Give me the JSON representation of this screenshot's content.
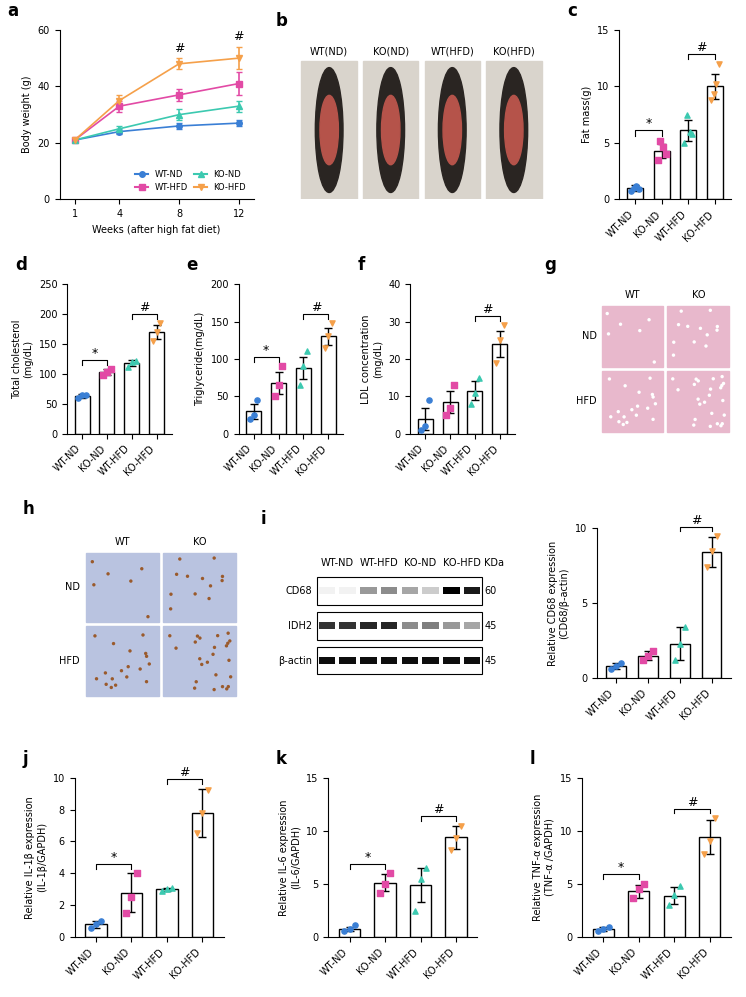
{
  "chart_data": [
    {
      "panel": "a",
      "type": "line",
      "xlabel": "Weeks (after high fat diet)",
      "ylabel": "Body weight (g)",
      "x": [
        1,
        4,
        8,
        12
      ],
      "xlim": [
        0,
        13
      ],
      "xticks": [
        1,
        4,
        8,
        12
      ],
      "ylim": [
        0,
        60
      ],
      "yticks": [
        0,
        20,
        40,
        60
      ],
      "legend": "lower right",
      "series": [
        {
          "name": "WT-ND",
          "color": "#3a7fd5",
          "marker": "circle",
          "values": [
            21,
            24,
            26,
            27
          ],
          "errors": [
            0.5,
            1,
            1,
            1
          ]
        },
        {
          "name": "WT-HFD",
          "color": "#e24aa5",
          "marker": "square",
          "values": [
            21,
            33,
            37,
            41
          ],
          "errors": [
            0.5,
            2,
            2,
            4
          ]
        },
        {
          "name": "KO-ND",
          "color": "#3cc9b0",
          "marker": "triangle_up",
          "values": [
            21,
            25,
            30,
            33
          ],
          "errors": [
            0.5,
            1,
            2,
            2
          ]
        },
        {
          "name": "KO-HFD",
          "color": "#f5a04a",
          "marker": "triangle_down",
          "values": [
            21,
            35,
            48,
            50
          ],
          "errors": [
            0.5,
            2,
            2,
            4
          ]
        }
      ],
      "annotations": [
        {
          "x": 8,
          "text": "#"
        },
        {
          "x": 12,
          "text": "#"
        }
      ]
    },
    {
      "panel": "c",
      "type": "bar",
      "ylabel": "Fat mass(g)",
      "categories": [
        "WT-ND",
        "KO-ND",
        "WT-HFD",
        "KO-HFD"
      ],
      "colors": [
        "#3a7fd5",
        "#e24aa5",
        "#3cc9b0",
        "#f5a04a"
      ],
      "values": [
        1.0,
        4.3,
        6.1,
        10.0
      ],
      "errors": [
        0.3,
        0.6,
        0.9,
        1.1
      ],
      "points": [
        [
          0.7,
          1.0,
          1.2,
          0.9
        ],
        [
          3.5,
          5.2,
          4.6,
          4.0
        ],
        [
          5.0,
          7.5,
          6.0,
          5.8
        ],
        [
          8.8,
          9.3,
          10.2,
          12.0
        ]
      ],
      "ylim": [
        0,
        15
      ],
      "yticks": [
        0,
        5,
        10,
        15
      ],
      "annotations": [
        {
          "between": [
            "WT-ND",
            "KO-ND"
          ],
          "text": "*"
        },
        {
          "between": [
            "WT-HFD",
            "KO-HFD"
          ],
          "text": "#"
        }
      ]
    },
    {
      "panel": "d",
      "type": "bar",
      "ylabel": "Total cholesterol\n(mg/dL)",
      "categories": [
        "WT-ND",
        "KO-ND",
        "WT-HFD",
        "KO-HFD"
      ],
      "colors": [
        "#3a7fd5",
        "#e24aa5",
        "#3cc9b0",
        "#f5a04a"
      ],
      "values": [
        63,
        103,
        118,
        170
      ],
      "errors": [
        3,
        5,
        5,
        12
      ],
      "points": [
        [
          60,
          65,
          64
        ],
        [
          98,
          103,
          108
        ],
        [
          112,
          120,
          122
        ],
        [
          155,
          170,
          185
        ]
      ],
      "ylim": [
        0,
        250
      ],
      "yticks": [
        0,
        50,
        100,
        150,
        200,
        250
      ],
      "annotations": [
        {
          "between": [
            "WT-ND",
            "KO-ND"
          ],
          "text": "*"
        },
        {
          "between": [
            "WT-HFD",
            "KO-HFD"
          ],
          "text": "#"
        }
      ]
    },
    {
      "panel": "e",
      "type": "bar",
      "ylabel": "Triglyceride(mg/dL)",
      "categories": [
        "WT-ND",
        "KO-ND",
        "WT-HFD",
        "KO-HFD"
      ],
      "colors": [
        "#3a7fd5",
        "#e24aa5",
        "#3cc9b0",
        "#f5a04a"
      ],
      "values": [
        30,
        68,
        88,
        130
      ],
      "errors": [
        10,
        15,
        15,
        12
      ],
      "points": [
        [
          20,
          25,
          45
        ],
        [
          50,
          65,
          90
        ],
        [
          65,
          90,
          110
        ],
        [
          115,
          130,
          148
        ]
      ],
      "ylim": [
        0,
        200
      ],
      "yticks": [
        0,
        50,
        100,
        150,
        200
      ],
      "annotations": [
        {
          "between": [
            "WT-ND",
            "KO-ND"
          ],
          "text": "*"
        },
        {
          "between": [
            "WT-HFD",
            "KO-HFD"
          ],
          "text": "#"
        }
      ]
    },
    {
      "panel": "f",
      "type": "bar",
      "ylabel": "LDL concentration\n(mg/dL)",
      "categories": [
        "WT-ND",
        "KO-ND",
        "WT-HFD",
        "KO-HFD"
      ],
      "colors": [
        "#3a7fd5",
        "#e24aa5",
        "#3cc9b0",
        "#f5a04a"
      ],
      "values": [
        4,
        8.5,
        11.5,
        24
      ],
      "errors": [
        3,
        3,
        2.5,
        3.5
      ],
      "points": [
        [
          1,
          2,
          9
        ],
        [
          5,
          7,
          13
        ],
        [
          8,
          11,
          15
        ],
        [
          19,
          25,
          29
        ]
      ],
      "ylim": [
        0,
        40
      ],
      "yticks": [
        0,
        10,
        20,
        30,
        40
      ],
      "annotations": [
        {
          "between": [
            "WT-HFD",
            "KO-HFD"
          ],
          "text": "#"
        }
      ]
    },
    {
      "type": "bar",
      "ylabel": "Relative CD68 expression\n(CD68/β-actin)",
      "categories": [
        "WT-ND",
        "KO-ND",
        "WT-HFD",
        "KO-HFD"
      ],
      "colors": [
        "#3a7fd5",
        "#e24aa5",
        "#3cc9b0",
        "#f5a04a"
      ],
      "values": [
        0.8,
        1.5,
        2.3,
        8.4
      ],
      "errors": [
        0.2,
        0.3,
        1.1,
        1.0
      ],
      "points": [
        [
          0.6,
          0.8,
          1.0
        ],
        [
          1.2,
          1.5,
          1.8
        ],
        [
          1.2,
          2.3,
          3.4
        ],
        [
          7.4,
          8.5,
          9.5
        ]
      ],
      "ylim": [
        0,
        10
      ],
      "yticks": [
        0,
        5,
        10
      ],
      "annotations": [
        {
          "between": [
            "WT-HFD",
            "KO-HFD"
          ],
          "text": "#"
        }
      ]
    },
    {
      "panel": "j",
      "type": "bar",
      "ylabel": "Relative IL-1β expression\n(IL-1β/GAPDH)",
      "categories": [
        "WT-ND",
        "KO-ND",
        "WT-HFD",
        "KO-HFD"
      ],
      "colors": [
        "#3a7fd5",
        "#e24aa5",
        "#3cc9b0",
        "#f5a04a"
      ],
      "values": [
        0.8,
        2.8,
        3.0,
        7.8
      ],
      "errors": [
        0.2,
        1.2,
        0.1,
        1.5
      ],
      "points": [
        [
          0.6,
          0.8,
          1.0
        ],
        [
          1.5,
          2.5,
          4.0
        ],
        [
          2.9,
          3.0,
          3.1
        ],
        [
          6.5,
          7.8,
          9.2
        ]
      ],
      "ylim": [
        0,
        10
      ],
      "yticks": [
        0,
        2,
        4,
        6,
        8,
        10
      ],
      "annotations": [
        {
          "between": [
            "WT-ND",
            "KO-ND"
          ],
          "text": "*"
        },
        {
          "between": [
            "WT-HFD",
            "KO-HFD"
          ],
          "text": "#"
        }
      ]
    },
    {
      "panel": "k",
      "type": "bar",
      "ylabel": "Relative IL-6 expression\n(IL-6/GAPDH)",
      "categories": [
        "WT-ND",
        "KO-ND",
        "WT-HFD",
        "KO-HFD"
      ],
      "colors": [
        "#3a7fd5",
        "#e24aa5",
        "#3cc9b0",
        "#f5a04a"
      ],
      "values": [
        0.8,
        5.1,
        4.9,
        9.4
      ],
      "errors": [
        0.2,
        0.8,
        1.6,
        1.1
      ],
      "points": [
        [
          0.6,
          0.8,
          1.1
        ],
        [
          4.2,
          5.0,
          6.0
        ],
        [
          2.5,
          5.5,
          6.5
        ],
        [
          8.2,
          9.3,
          10.5
        ]
      ],
      "ylim": [
        0,
        15
      ],
      "yticks": [
        0,
        5,
        10,
        15
      ],
      "annotations": [
        {
          "between": [
            "WT-ND",
            "KO-ND"
          ],
          "text": "*"
        },
        {
          "between": [
            "WT-HFD",
            "KO-HFD"
          ],
          "text": "#"
        }
      ]
    },
    {
      "panel": "l",
      "type": "bar",
      "ylabel": "Relative TNF-α expression\n(TNF-α /GAPDH)",
      "categories": [
        "WT-ND",
        "KO-ND",
        "WT-HFD",
        "KO-HFD"
      ],
      "colors": [
        "#3a7fd5",
        "#e24aa5",
        "#3cc9b0",
        "#f5a04a"
      ],
      "values": [
        0.8,
        4.3,
        3.9,
        9.4
      ],
      "errors": [
        0.2,
        0.6,
        0.8,
        1.6
      ],
      "points": [
        [
          0.6,
          0.8,
          1.0
        ],
        [
          3.7,
          4.5,
          5.0
        ],
        [
          3.0,
          4.0,
          4.8
        ],
        [
          7.8,
          9.0,
          11.2
        ]
      ],
      "ylim": [
        0,
        15
      ],
      "yticks": [
        0,
        5,
        10,
        15
      ],
      "annotations": [
        {
          "between": [
            "WT-ND",
            "KO-ND"
          ],
          "text": "*"
        },
        {
          "between": [
            "WT-HFD",
            "KO-HFD"
          ],
          "text": "#"
        }
      ]
    }
  ],
  "images": [
    {
      "panel": "b",
      "type": "photos",
      "labels": [
        "WT(ND)",
        "KO(ND)",
        "WT(HFD)",
        "KO(HFD)"
      ]
    },
    {
      "panel": "g",
      "type": "histology",
      "columns": [
        "WT",
        "KO"
      ],
      "rows": [
        "ND",
        "HFD"
      ]
    },
    {
      "panel": "h",
      "type": "immunostain",
      "columns": [
        "WT",
        "KO"
      ],
      "rows": [
        "ND",
        "HFD"
      ]
    },
    {
      "panel": "i",
      "type": "blot",
      "groups": [
        "WT-ND",
        "WT-HFD",
        "KO-ND",
        "KO-HFD"
      ],
      "unit": "KDa",
      "bands": [
        {
          "name": "CD68",
          "marker": "60",
          "intensity": [
            0.05,
            0.05,
            0.4,
            0.45,
            0.35,
            0.2,
            1.0,
            0.9
          ]
        },
        {
          "name": "IDH2",
          "marker": "45",
          "intensity": [
            0.8,
            0.8,
            0.85,
            0.85,
            0.45,
            0.5,
            0.4,
            0.35
          ]
        },
        {
          "name": "β-actin",
          "marker": "45",
          "intensity": [
            0.95,
            0.95,
            0.95,
            0.95,
            0.95,
            0.95,
            0.95,
            0.95
          ]
        }
      ]
    }
  ]
}
